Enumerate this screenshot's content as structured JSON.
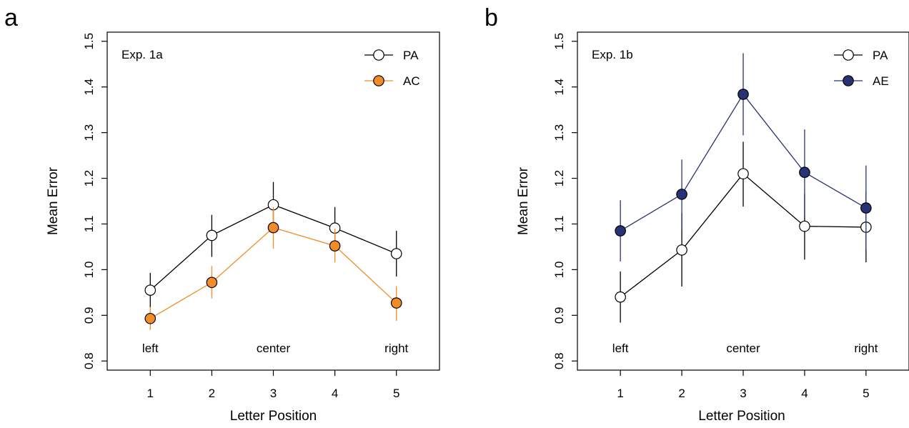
{
  "chart_data": [
    {
      "type": "line",
      "panel_label": "a",
      "title": "Exp. 1a",
      "xlabel": "Letter Position",
      "ylabel": "Mean Error",
      "x": [
        1,
        2,
        3,
        4,
        5
      ],
      "xlim": [
        0.3,
        5.7
      ],
      "ylim": [
        0.78,
        1.52
      ],
      "yticks": [
        "0.8",
        "0.9",
        "1.0",
        "1.1",
        "1.2",
        "1.3",
        "1.4",
        "1.5"
      ],
      "xticks": [
        "1",
        "2",
        "3",
        "4",
        "5"
      ],
      "position_labels": [
        {
          "x": 1,
          "text": "left"
        },
        {
          "x": 3,
          "text": "center"
        },
        {
          "x": 5,
          "text": "right"
        }
      ],
      "legend_position": "top-right",
      "grid": false,
      "series": [
        {
          "name": "PA",
          "color": "#000000",
          "marker_fill": "#ffffff",
          "values": [
            0.955,
            1.075,
            1.142,
            1.091,
            1.035
          ],
          "err_low": [
            0.918,
            1.028,
            1.092,
            1.045,
            0.985
          ],
          "err_high": [
            0.993,
            1.12,
            1.192,
            1.137,
            1.085
          ]
        },
        {
          "name": "AC",
          "color": "#f28c28",
          "marker_fill": "#f28c28",
          "values": [
            0.893,
            0.972,
            1.092,
            1.052,
            0.927
          ],
          "err_low": [
            0.868,
            0.937,
            1.046,
            1.016,
            0.888
          ],
          "err_high": [
            0.918,
            1.008,
            1.137,
            1.09,
            0.964
          ]
        }
      ]
    },
    {
      "type": "line",
      "panel_label": "b",
      "title": "Exp. 1b",
      "xlabel": "Letter Position",
      "ylabel": "Mean Error",
      "x": [
        1,
        2,
        3,
        4,
        5
      ],
      "xlim": [
        0.3,
        5.7
      ],
      "ylim": [
        0.78,
        1.52
      ],
      "yticks": [
        "0.8",
        "0.9",
        "1.0",
        "1.1",
        "1.2",
        "1.3",
        "1.4",
        "1.5"
      ],
      "xticks": [
        "1",
        "2",
        "3",
        "4",
        "5"
      ],
      "position_labels": [
        {
          "x": 1,
          "text": "left"
        },
        {
          "x": 3,
          "text": "center"
        },
        {
          "x": 5,
          "text": "right"
        }
      ],
      "legend_position": "top-right",
      "grid": false,
      "series": [
        {
          "name": "PA",
          "color": "#000000",
          "marker_fill": "#ffffff",
          "values": [
            0.94,
            1.043,
            1.21,
            1.095,
            1.093
          ],
          "err_low": [
            0.884,
            0.963,
            1.138,
            1.022,
            1.016
          ],
          "err_high": [
            0.996,
            1.124,
            1.28,
            1.166,
            1.171
          ]
        },
        {
          "name": "AE",
          "color": "#283275",
          "marker_fill": "#283275",
          "values": [
            1.085,
            1.165,
            1.384,
            1.213,
            1.135
          ],
          "err_low": [
            1.018,
            1.088,
            1.294,
            1.118,
            1.043
          ],
          "err_high": [
            1.152,
            1.241,
            1.474,
            1.307,
            1.228
          ]
        }
      ]
    }
  ]
}
